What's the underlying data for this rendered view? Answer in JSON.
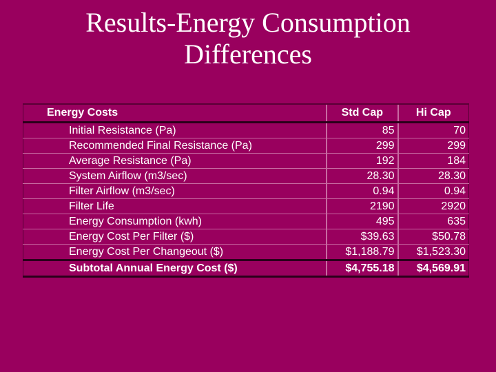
{
  "slide": {
    "title_line1": "Results-Energy Consumption",
    "title_line2": "Differences"
  },
  "table": {
    "headers": [
      "Energy Costs",
      "Std Cap",
      "Hi Cap"
    ],
    "rows": [
      [
        "Initial Resistance (Pa)",
        "85",
        "70"
      ],
      [
        "Recommended Final Resistance (Pa)",
        "299",
        "299"
      ],
      [
        "Average Resistance (Pa)",
        "192",
        "184"
      ],
      [
        "System Airflow (m3/sec)",
        "28.30",
        "28.30"
      ],
      [
        "Filter Airflow (m3/sec)",
        "0.94",
        "0.94"
      ],
      [
        "Filter Life",
        "2190",
        "2920"
      ],
      [
        "Energy Consumption (kwh)",
        "495",
        "635"
      ],
      [
        "Energy Cost Per Filter ($)",
        "$39.63",
        "$50.78"
      ],
      [
        "Energy Cost Per Changeout ($)",
        "$1,188.79",
        "$1,523.30"
      ],
      [
        "Subtotal Annual Energy Cost ($)",
        "$4,755.18",
        "$4,569.91"
      ]
    ]
  },
  "colors": {
    "background": "#99005e",
    "text": "#ffffff"
  }
}
